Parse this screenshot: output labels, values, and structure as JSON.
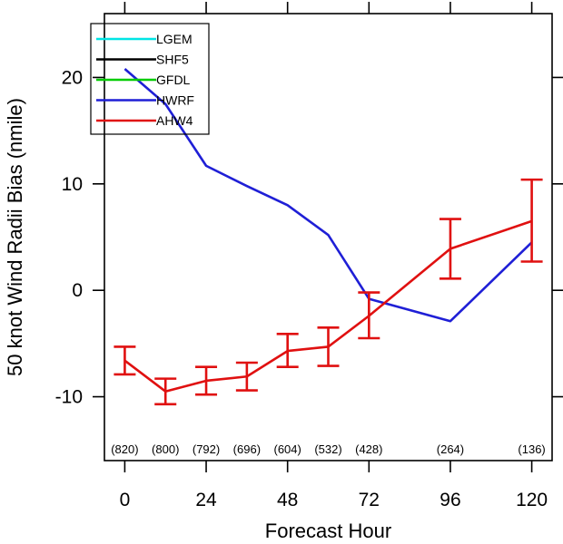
{
  "chart_data": {
    "type": "line",
    "xlabel": "Forecast Hour",
    "ylabel": "50 knot Wind Radii Bias (nmile)",
    "xlim": [
      -6,
      126
    ],
    "ylim": [
      -16,
      26
    ],
    "xticks": [
      0,
      24,
      48,
      72,
      96,
      120
    ],
    "xtick_labels": [
      "0",
      "24",
      "48",
      "72",
      "96",
      "120"
    ],
    "yticks": [
      -10,
      0,
      10,
      20
    ],
    "ytick_labels": [
      "-10",
      "0",
      "10",
      "20"
    ],
    "legend_position": "top-left",
    "series": [
      {
        "name": "LGEM",
        "color": "#00e5e5",
        "x": [],
        "y": []
      },
      {
        "name": "SHF5",
        "color": "#000000",
        "x": [],
        "y": []
      },
      {
        "name": "GFDL",
        "color": "#00cc00",
        "x": [],
        "y": []
      },
      {
        "name": "HWRF",
        "color": "#1f1fd6",
        "x": [
          0,
          12,
          24,
          36,
          48,
          60,
          72,
          96,
          120
        ],
        "y": [
          20.8,
          17.5,
          11.7,
          9.8,
          8.0,
          5.2,
          -0.8,
          -2.9,
          4.5
        ]
      },
      {
        "name": "AHW4",
        "color": "#e01010",
        "x": [
          0,
          12,
          24,
          36,
          48,
          60,
          72,
          96,
          120
        ],
        "y": [
          -6.6,
          -9.5,
          -8.5,
          -8.1,
          -5.7,
          -5.3,
          -2.4,
          3.9,
          6.5
        ],
        "error_low": [
          -7.9,
          -10.7,
          -9.8,
          -9.4,
          -7.2,
          -7.1,
          -4.5,
          1.1,
          2.7
        ],
        "error_high": [
          -5.3,
          -8.3,
          -7.2,
          -6.8,
          -4.1,
          -3.5,
          -0.2,
          6.7,
          10.4
        ]
      }
    ],
    "sample_counts": {
      "x": [
        0,
        12,
        24,
        36,
        48,
        60,
        72,
        96,
        120
      ],
      "labels": [
        "(820)",
        "(800)",
        "(792)",
        "(696)",
        "(604)",
        "(532)",
        "(428)",
        "(264)",
        "(136)"
      ]
    }
  }
}
